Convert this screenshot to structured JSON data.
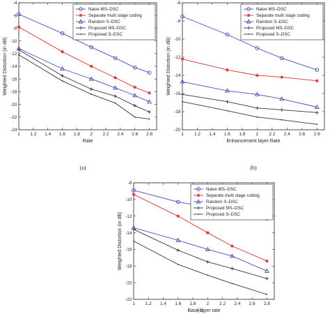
{
  "chart_data": [
    {
      "type": "line",
      "subcaption": "(a)",
      "xlabel": "Rate",
      "ylabel": "Weighted Distortion (in dB)",
      "xlim": [
        1,
        2.9
      ],
      "ylim": [
        -24,
        -4
      ],
      "xticks": [
        1,
        1.2,
        1.4,
        1.6,
        1.8,
        2,
        2.2,
        2.4,
        2.6,
        2.8
      ],
      "yticks": [
        -4,
        -6,
        -8,
        -10,
        -12,
        -14,
        -16,
        -18,
        -20,
        -22,
        -24
      ],
      "grid": false,
      "legend_position": "top-right",
      "series": [
        {
          "name": "Naive MS–DSC",
          "color": "#4a4ab8",
          "marker": "circle",
          "x": [
            1,
            1.6,
            2,
            2.33,
            2.6,
            2.8
          ],
          "y": [
            -5.8,
            -8.8,
            -11.0,
            -12.7,
            -14.2,
            -15.0
          ]
        },
        {
          "name": "Separate multi stage coding",
          "color": "#d93030",
          "marker": "star",
          "x": [
            1,
            1.6,
            2,
            2.33,
            2.6,
            2.8
          ],
          "y": [
            -7.8,
            -11.7,
            -14.0,
            -15.8,
            -17.3,
            -18.2
          ]
        },
        {
          "name": "Random S–DSC",
          "color": "#4a4ab8",
          "marker": "triangle",
          "x": [
            1,
            1.6,
            2,
            2.33,
            2.6,
            2.8
          ],
          "y": [
            -11.2,
            -14.4,
            -16.0,
            -17.4,
            -18.6,
            -19.6
          ]
        },
        {
          "name": "Proposed MS–DSC",
          "color": "#333333",
          "marker": "plus",
          "x": [
            1,
            1.6,
            2,
            2.33,
            2.6,
            2.8
          ],
          "y": [
            -11.4,
            -15.5,
            -17.6,
            -18.7,
            -20.2,
            -21.2
          ]
        },
        {
          "name": "Proposed S–DSC",
          "color": "#333333",
          "marker": "dot",
          "x": [
            1,
            1.6,
            2,
            2.33,
            2.6,
            2.8
          ],
          "y": [
            -12.2,
            -16.3,
            -18.4,
            -19.8,
            -22.0,
            -22.3
          ]
        }
      ]
    },
    {
      "type": "line",
      "subcaption": "(b)",
      "xlabel": "Enhancement layer Rate",
      "ylabel": "Weighted Distortion (in dB)",
      "xlim": [
        1,
        2.9
      ],
      "ylim": [
        -20,
        -6
      ],
      "xticks": [
        1,
        1.2,
        1.4,
        1.6,
        1.8,
        2,
        2.2,
        2.4,
        2.6,
        2.8
      ],
      "yticks": [
        -6,
        -8,
        -10,
        -12,
        -14,
        -16,
        -18,
        -20
      ],
      "grid": false,
      "legend_position": "top-right",
      "series": [
        {
          "name": "Naive MS–DSC",
          "color": "#4a4ab8",
          "marker": "circle",
          "x": [
            1,
            1.6,
            2,
            2.33,
            2.8
          ],
          "y": [
            -7.5,
            -9.5,
            -11.0,
            -12.1,
            -13.4
          ]
        },
        {
          "name": "Separate multi stage coding",
          "color": "#d93030",
          "marker": "star",
          "x": [
            1,
            1.6,
            2,
            2.33,
            2.8
          ],
          "y": [
            -12.2,
            -13.4,
            -14.0,
            -14.2,
            -14.6
          ]
        },
        {
          "name": "Random S–DSC",
          "color": "#4a4ab8",
          "marker": "triangle",
          "x": [
            1,
            1.6,
            2,
            2.33,
            2.8
          ],
          "y": [
            -14.7,
            -15.7,
            -16.1,
            -16.6,
            -17.5
          ]
        },
        {
          "name": "Proposed MS–DSC",
          "color": "#333333",
          "marker": "plus",
          "x": [
            1,
            1.6,
            2,
            2.33,
            2.8
          ],
          "y": [
            -16.1,
            -16.9,
            -17.6,
            -17.8,
            -18.1
          ]
        },
        {
          "name": "Proposed S–DSC",
          "color": "#333333",
          "marker": "dot",
          "x": [
            1,
            1.6,
            2,
            2.33,
            2.8
          ],
          "y": [
            -16.9,
            -17.9,
            -18.6,
            -18.9,
            -19.4
          ]
        }
      ]
    },
    {
      "type": "line",
      "subcaption": "(c)",
      "xlabel": "Base layer rate",
      "ylabel": "Weighted Distortion (in dB)",
      "xlim": [
        1,
        2.9
      ],
      "ylim": [
        -22,
        -8
      ],
      "xticks": [
        1,
        1.2,
        1.4,
        1.6,
        1.8,
        2,
        2.2,
        2.4,
        2.6,
        2.8
      ],
      "yticks": [
        -8,
        -10,
        -12,
        -14,
        -16,
        -18,
        -20,
        -22
      ],
      "grid": false,
      "legend_position": "top-right",
      "series": [
        {
          "name": "Naive MS–DSC",
          "color": "#4a4ab8",
          "marker": "circle",
          "x": [
            1,
            1.6,
            2,
            2.33,
            2.8
          ],
          "y": [
            -8.9,
            -10.3,
            -10.9,
            -11.8,
            -12.3
          ]
        },
        {
          "name": "Separate multi stage coding",
          "color": "#d93030",
          "marker": "star",
          "x": [
            1,
            1.6,
            2,
            2.33,
            2.8
          ],
          "y": [
            -9.4,
            -12.0,
            -14.0,
            -15.6,
            -17.4
          ]
        },
        {
          "name": "Random S–DSC",
          "color": "#4a4ab8",
          "marker": "triangle",
          "x": [
            1,
            1.6,
            2,
            2.33,
            2.8
          ],
          "y": [
            -13.4,
            -14.9,
            -16.0,
            -16.8,
            -18.6
          ]
        },
        {
          "name": "Proposed MS–DSC",
          "color": "#333333",
          "marker": "plus",
          "x": [
            1,
            1.6,
            2,
            2.33,
            2.8
          ],
          "y": [
            -13.6,
            -16.1,
            -17.5,
            -18.3,
            -19.5
          ]
        },
        {
          "name": "Proposed S–DSC",
          "color": "#333333",
          "marker": "dot",
          "x": [
            1,
            1.6,
            2,
            2.33,
            2.8
          ],
          "y": [
            -15.0,
            -17.8,
            -19.1,
            -20.1,
            -21.4
          ]
        }
      ]
    }
  ]
}
